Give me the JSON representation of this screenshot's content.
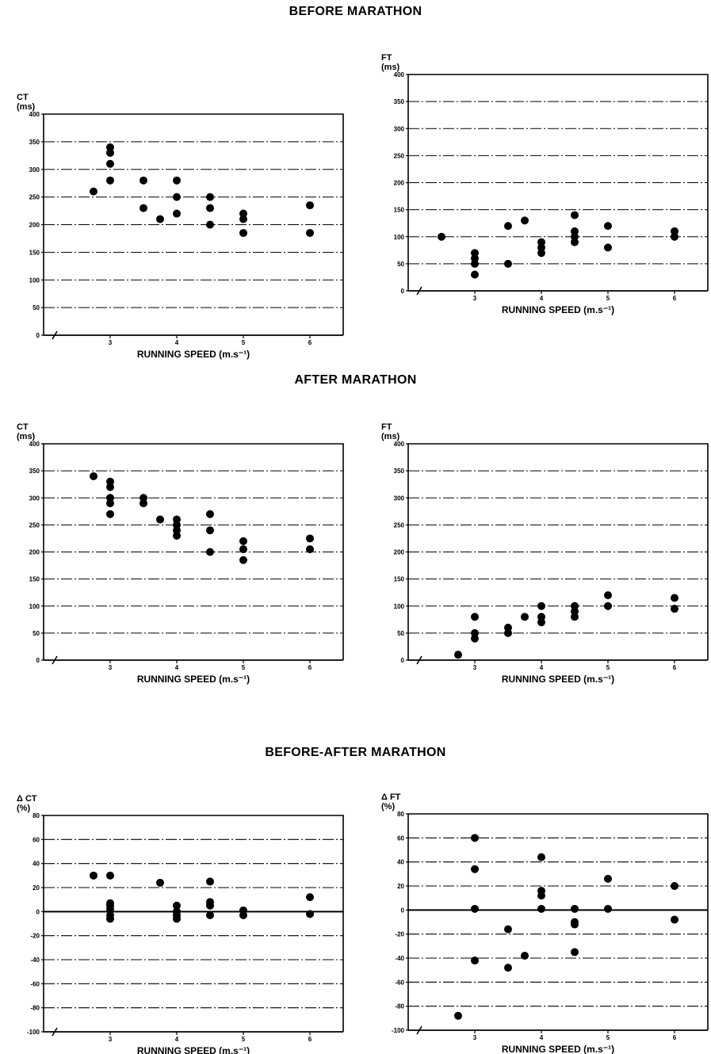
{
  "sections": {
    "before": "BEFORE MARATHON",
    "after": "AFTER MARATHON",
    "diff": "BEFORE-AFTER MARATHON"
  },
  "chart_data": [
    {
      "id": "before-ct",
      "type": "scatter",
      "ylabel_top": "CT",
      "ylabel_unit": "(ms)",
      "xlabel": "RUNNING SPEED (m.s⁻¹)",
      "xlim": [
        2.0,
        6.5
      ],
      "ylim": [
        0,
        400
      ],
      "xticks": [
        3,
        4,
        5,
        6
      ],
      "xtick_labels": [
        "3",
        "4",
        "5",
        "6"
      ],
      "yticks": [
        0,
        50,
        100,
        150,
        200,
        250,
        300,
        350,
        400
      ],
      "ytick_labels": [
        "0",
        "50",
        "100",
        "150",
        "200",
        "250",
        "300",
        "350",
        "400"
      ],
      "axis_break": true,
      "zero_line": false,
      "points": [
        [
          2.75,
          260
        ],
        [
          3.0,
          340
        ],
        [
          3.0,
          330
        ],
        [
          3.0,
          310
        ],
        [
          3.0,
          280
        ],
        [
          3.5,
          280
        ],
        [
          3.5,
          230
        ],
        [
          3.75,
          210
        ],
        [
          4.0,
          280
        ],
        [
          4.0,
          250
        ],
        [
          4.0,
          220
        ],
        [
          4.5,
          250
        ],
        [
          4.5,
          230
        ],
        [
          4.5,
          200
        ],
        [
          5.0,
          220
        ],
        [
          5.0,
          210
        ],
        [
          5.0,
          185
        ],
        [
          6.0,
          235
        ],
        [
          6.0,
          185
        ]
      ]
    },
    {
      "id": "before-ft",
      "type": "scatter",
      "ylabel_top": "FT",
      "ylabel_unit": "(ms)",
      "xlabel": "RUNNING SPEED (m.s⁻¹)",
      "xlim": [
        2.0,
        6.5
      ],
      "ylim": [
        0,
        400
      ],
      "xticks": [
        3,
        4,
        5,
        6
      ],
      "xtick_labels": [
        "3",
        "4",
        "5",
        "6"
      ],
      "yticks": [
        0,
        50,
        100,
        150,
        200,
        250,
        300,
        350,
        400
      ],
      "ytick_labels": [
        "0",
        "50",
        "100",
        "150",
        "200",
        "250",
        "300",
        "350",
        "400"
      ],
      "axis_break": true,
      "zero_line": false,
      "points": [
        [
          2.5,
          100
        ],
        [
          3.0,
          70
        ],
        [
          3.0,
          60
        ],
        [
          3.0,
          50
        ],
        [
          3.0,
          30
        ],
        [
          3.5,
          120
        ],
        [
          3.5,
          50
        ],
        [
          3.75,
          130
        ],
        [
          4.0,
          90
        ],
        [
          4.0,
          80
        ],
        [
          4.0,
          70
        ],
        [
          4.5,
          140
        ],
        [
          4.5,
          110
        ],
        [
          4.5,
          100
        ],
        [
          4.5,
          90
        ],
        [
          5.0,
          120
        ],
        [
          5.0,
          80
        ],
        [
          6.0,
          110
        ],
        [
          6.0,
          100
        ]
      ]
    },
    {
      "id": "after-ct",
      "type": "scatter",
      "ylabel_top": "CT",
      "ylabel_unit": "(ms)",
      "xlabel": "RUNNING SPEED (m.s⁻¹)",
      "xlim": [
        2.0,
        6.5
      ],
      "ylim": [
        0,
        400
      ],
      "xticks": [
        3,
        4,
        5,
        6
      ],
      "xtick_labels": [
        "3",
        "4",
        "5",
        "6"
      ],
      "yticks": [
        0,
        50,
        100,
        150,
        200,
        250,
        300,
        350,
        400
      ],
      "ytick_labels": [
        "0",
        "50",
        "100",
        "150",
        "200",
        "250",
        "300",
        "350",
        "400"
      ],
      "axis_break": true,
      "zero_line": false,
      "points": [
        [
          2.75,
          340
        ],
        [
          3.0,
          330
        ],
        [
          3.0,
          320
        ],
        [
          3.0,
          300
        ],
        [
          3.0,
          290
        ],
        [
          3.0,
          270
        ],
        [
          3.5,
          300
        ],
        [
          3.5,
          290
        ],
        [
          3.75,
          260
        ],
        [
          4.0,
          260
        ],
        [
          4.0,
          250
        ],
        [
          4.0,
          240
        ],
        [
          4.0,
          230
        ],
        [
          4.5,
          270
        ],
        [
          4.5,
          240
        ],
        [
          4.5,
          200
        ],
        [
          5.0,
          220
        ],
        [
          5.0,
          205
        ],
        [
          5.0,
          185
        ],
        [
          6.0,
          225
        ],
        [
          6.0,
          205
        ]
      ]
    },
    {
      "id": "after-ft",
      "type": "scatter",
      "ylabel_top": "FT",
      "ylabel_unit": "(ms)",
      "xlabel": "RUNNING SPEED (m.s⁻¹)",
      "xlim": [
        2.0,
        6.5
      ],
      "ylim": [
        0,
        400
      ],
      "xticks": [
        3,
        4,
        5,
        6
      ],
      "xtick_labels": [
        "3",
        "4",
        "5",
        "6"
      ],
      "yticks": [
        0,
        50,
        100,
        150,
        200,
        250,
        300,
        350,
        400
      ],
      "ytick_labels": [
        "0",
        "50",
        "100",
        "150",
        "200",
        "250",
        "300",
        "350",
        "400"
      ],
      "axis_break": true,
      "zero_line": false,
      "points": [
        [
          2.75,
          10
        ],
        [
          3.0,
          80
        ],
        [
          3.0,
          50
        ],
        [
          3.0,
          40
        ],
        [
          3.5,
          60
        ],
        [
          3.5,
          50
        ],
        [
          3.75,
          80
        ],
        [
          4.0,
          100
        ],
        [
          4.0,
          80
        ],
        [
          4.0,
          70
        ],
        [
          4.5,
          100
        ],
        [
          4.5,
          90
        ],
        [
          4.5,
          80
        ],
        [
          5.0,
          120
        ],
        [
          5.0,
          100
        ],
        [
          6.0,
          115
        ],
        [
          6.0,
          95
        ]
      ]
    },
    {
      "id": "diff-ct",
      "type": "scatter",
      "ylabel_top": "Δ CT",
      "ylabel_unit": "(%)",
      "xlabel": "RUNNING SPEED (m.s⁻¹)",
      "xlim": [
        2.0,
        6.5
      ],
      "ylim": [
        -100,
        80
      ],
      "xticks": [
        3,
        4,
        5,
        6
      ],
      "xtick_labels": [
        "3",
        "4",
        "5",
        "6"
      ],
      "yticks": [
        -100,
        -80,
        -60,
        -40,
        -20,
        0,
        20,
        40,
        60,
        80
      ],
      "ytick_labels": [
        "-100",
        "-80",
        "-60",
        "-40",
        "-20",
        "0",
        "20",
        "40",
        "60",
        "80"
      ],
      "axis_break": true,
      "zero_line": true,
      "points": [
        [
          2.75,
          30
        ],
        [
          3.0,
          30
        ],
        [
          3.0,
          7
        ],
        [
          3.0,
          5
        ],
        [
          3.0,
          2
        ],
        [
          3.0,
          -3
        ],
        [
          3.0,
          -6
        ],
        [
          3.75,
          24
        ],
        [
          4.0,
          5
        ],
        [
          4.0,
          0
        ],
        [
          4.0,
          -3
        ],
        [
          4.0,
          -6
        ],
        [
          4.5,
          25
        ],
        [
          4.5,
          8
        ],
        [
          4.5,
          5
        ],
        [
          4.5,
          -3
        ],
        [
          5.0,
          1
        ],
        [
          5.0,
          -3
        ],
        [
          6.0,
          12
        ],
        [
          6.0,
          -2
        ]
      ]
    },
    {
      "id": "diff-ft",
      "type": "scatter",
      "ylabel_top": "Δ FT",
      "ylabel_unit": "(%)",
      "xlabel": "RUNNING SPEED (m.s⁻¹)",
      "xlim": [
        2.0,
        6.5
      ],
      "ylim": [
        -100,
        80
      ],
      "xticks": [
        3,
        4,
        5,
        6
      ],
      "xtick_labels": [
        "3",
        "4",
        "5",
        "6"
      ],
      "yticks": [
        -100,
        -80,
        -60,
        -40,
        -20,
        0,
        20,
        40,
        60,
        80
      ],
      "ytick_labels": [
        "-100",
        "-80",
        "-60",
        "-40",
        "-20",
        "0",
        "20",
        "40",
        "60",
        "80"
      ],
      "axis_break": true,
      "zero_line": true,
      "points": [
        [
          2.75,
          -88
        ],
        [
          3.0,
          60
        ],
        [
          3.0,
          34
        ],
        [
          3.0,
          1
        ],
        [
          3.0,
          -42
        ],
        [
          3.5,
          -16
        ],
        [
          3.5,
          -48
        ],
        [
          3.75,
          -38
        ],
        [
          4.0,
          44
        ],
        [
          4.0,
          16
        ],
        [
          4.0,
          12
        ],
        [
          4.0,
          1
        ],
        [
          4.5,
          1
        ],
        [
          4.5,
          -10
        ],
        [
          4.5,
          -12
        ],
        [
          4.5,
          -35
        ],
        [
          5.0,
          26
        ],
        [
          5.0,
          1
        ],
        [
          6.0,
          20
        ],
        [
          6.0,
          -8
        ]
      ]
    }
  ]
}
